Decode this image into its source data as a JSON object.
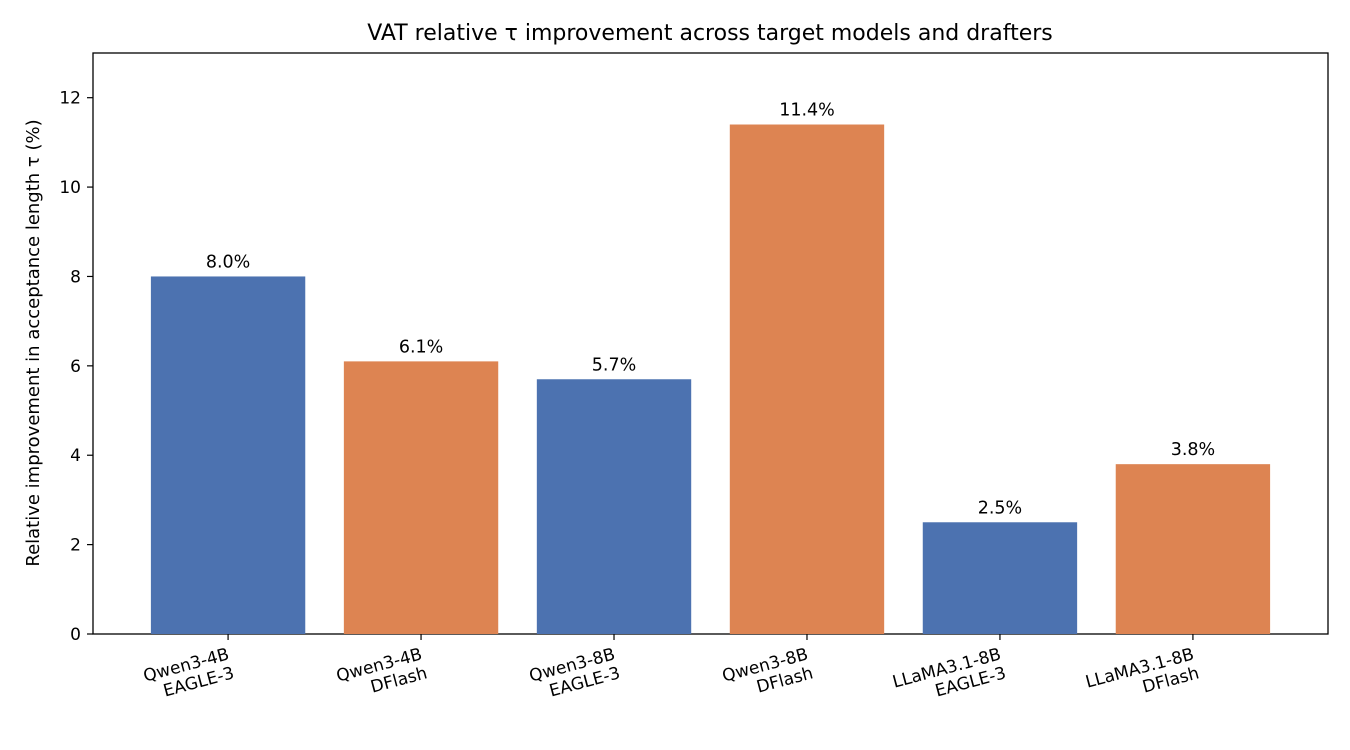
{
  "colors": {
    "eagle": "#4c72b0",
    "dflash": "#dd8452",
    "axis": "#000000"
  },
  "chart_data": {
    "type": "bar",
    "title": "VAT relative τ improvement across target models and drafters",
    "xlabel": "",
    "ylabel": "Relative improvement in acceptance length τ (%)",
    "ylim": [
      0,
      13
    ],
    "yticks": [
      0,
      2,
      4,
      6,
      8,
      10,
      12
    ],
    "grid": false,
    "categories": [
      [
        "Qwen3-4B",
        "EAGLE-3"
      ],
      [
        "Qwen3-4B",
        "DFlash"
      ],
      [
        "Qwen3-8B",
        "EAGLE-3"
      ],
      [
        "Qwen3-8B",
        "DFlash"
      ],
      [
        "LLaMA3.1-8B",
        "EAGLE-3"
      ],
      [
        "LLaMA3.1-8B",
        "DFlash"
      ]
    ],
    "drafters": [
      "EAGLE-3",
      "DFlash",
      "EAGLE-3",
      "DFlash",
      "EAGLE-3",
      "DFlash"
    ],
    "values": [
      8.0,
      6.1,
      5.7,
      11.4,
      2.5,
      3.8
    ],
    "data_labels": [
      "8.0%",
      "6.1%",
      "5.7%",
      "11.4%",
      "2.5%",
      "3.8%"
    ]
  }
}
